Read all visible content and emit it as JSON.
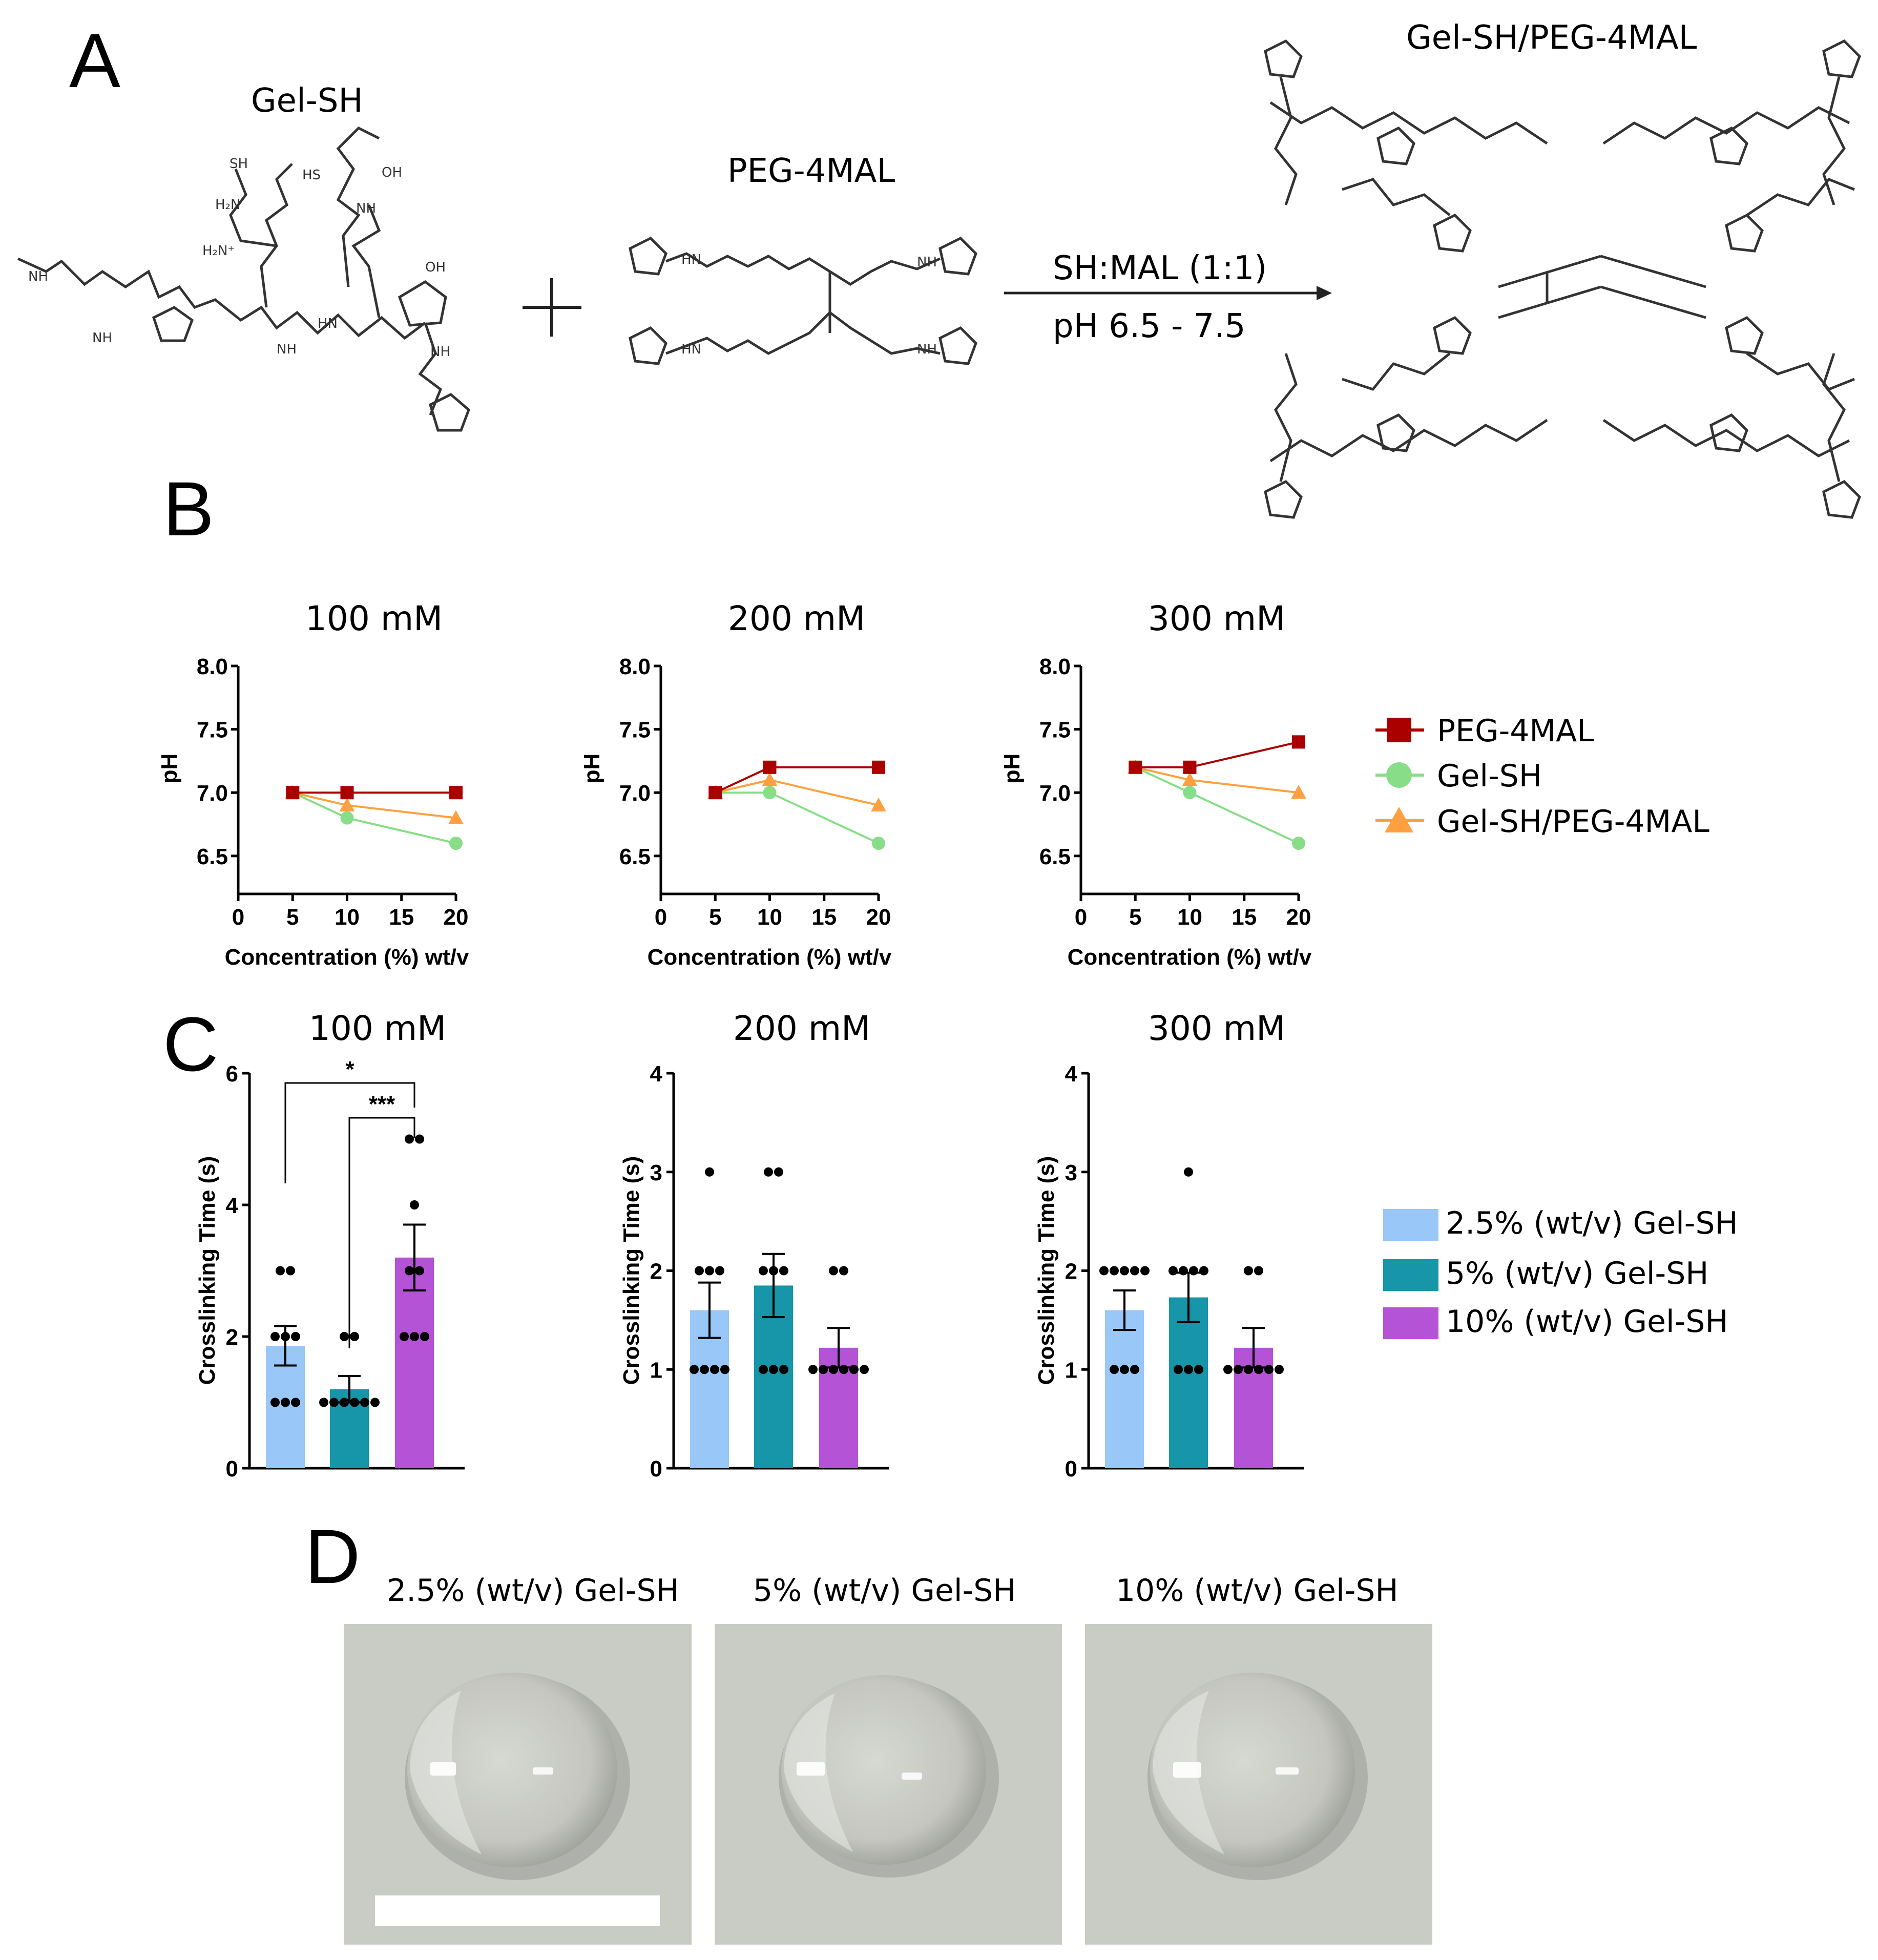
{
  "panel_a": {
    "letter": "A",
    "gel_sh_label": "Gel-SH",
    "peg_label": "PEG-4MAL",
    "product_label": "Gel-SH/PEG-4MAL",
    "condition_ratio": "SH:MAL (1:1)",
    "condition_ph": "pH 6.5 - 7.5"
  },
  "panel_b": {
    "letter": "B"
  },
  "panel_c": {
    "letter": "C"
  },
  "panel_d": {
    "letter": "D",
    "photo_labels": [
      "2.5% (wt/v) Gel-SH",
      "5% (wt/v) Gel-SH",
      "10% (wt/v) Gel-SH"
    ]
  },
  "colors": {
    "peg": "#aa0000",
    "gel": "#88dd88",
    "mix": "#ffa040",
    "bar_2_5": "#99c7f7",
    "bar_5": "#1696a8",
    "bar_10": "#b553d6",
    "photo_bg": "#c9cbc5"
  },
  "chart_data": [
    {
      "type": "line",
      "title": "100 mM",
      "xlabel": "Concentration (%) wt/v",
      "ylabel": "pH",
      "xlim": [
        0,
        20
      ],
      "ylim": [
        6.2,
        8.0
      ],
      "xticks": [
        "0",
        "5",
        "10",
        "15",
        "20"
      ],
      "yticks": [
        "6.5",
        "7.0",
        "7.5",
        "8.0"
      ],
      "x": [
        5,
        10,
        20
      ],
      "series": [
        {
          "name": "PEG-4MAL",
          "values": [
            7.0,
            7.0,
            7.0
          ]
        },
        {
          "name": "Gel-SH",
          "values": [
            7.0,
            6.8,
            6.6
          ]
        },
        {
          "name": "Gel-SH/PEG-4MAL",
          "values": [
            7.0,
            6.9,
            6.8
          ]
        }
      ]
    },
    {
      "type": "line",
      "title": "200 mM",
      "xlabel": "Concentration (%) wt/v",
      "ylabel": "pH",
      "xlim": [
        0,
        20
      ],
      "ylim": [
        6.2,
        8.0
      ],
      "xticks": [
        "0",
        "5",
        "10",
        "15",
        "20"
      ],
      "yticks": [
        "6.5",
        "7.0",
        "7.5",
        "8.0"
      ],
      "x": [
        5,
        10,
        20
      ],
      "series": [
        {
          "name": "PEG-4MAL",
          "values": [
            7.0,
            7.2,
            7.2
          ]
        },
        {
          "name": "Gel-SH",
          "values": [
            7.0,
            7.0,
            6.6
          ]
        },
        {
          "name": "Gel-SH/PEG-4MAL",
          "values": [
            7.0,
            7.1,
            6.9
          ]
        }
      ]
    },
    {
      "type": "line",
      "title": "300 mM",
      "xlabel": "Concentration (%) wt/v",
      "ylabel": "pH",
      "xlim": [
        0,
        20
      ],
      "ylim": [
        6.2,
        8.0
      ],
      "xticks": [
        "0",
        "5",
        "10",
        "15",
        "20"
      ],
      "yticks": [
        "6.5",
        "7.0",
        "7.5",
        "8.0"
      ],
      "x": [
        5,
        10,
        20
      ],
      "series": [
        {
          "name": "PEG-4MAL",
          "values": [
            7.2,
            7.2,
            7.4
          ]
        },
        {
          "name": "Gel-SH",
          "values": [
            7.2,
            7.0,
            6.6
          ]
        },
        {
          "name": "Gel-SH/PEG-4MAL",
          "values": [
            7.2,
            7.1,
            7.0
          ]
        }
      ]
    },
    {
      "type": "bar",
      "title": "100 mM",
      "ylabel": "Crosslinking Time (s)",
      "ylim": [
        0,
        6
      ],
      "yticks": [
        "0",
        "2",
        "4",
        "6"
      ],
      "categories": [
        "2.5% (wt/v) Gel-SH",
        "5% (wt/v) Gel-SH",
        "10% (wt/v) Gel-SH"
      ],
      "values": [
        1.86,
        1.2,
        3.2
      ],
      "errors": [
        0.3,
        0.2,
        0.5
      ],
      "points": [
        [
          1,
          1,
          1,
          2,
          2,
          2,
          3,
          3
        ],
        [
          1,
          1,
          1,
          1,
          1,
          1,
          2,
          2
        ],
        [
          2,
          2,
          2,
          3,
          3,
          4,
          5,
          5
        ]
      ],
      "significance": [
        {
          "pair": [
            0,
            2
          ],
          "label": "*"
        },
        {
          "pair": [
            1,
            2
          ],
          "label": "***"
        }
      ]
    },
    {
      "type": "bar",
      "title": "200 mM",
      "ylabel": "Crosslinking Time (s)",
      "ylim": [
        0,
        4
      ],
      "yticks": [
        "0",
        "1",
        "2",
        "3",
        "4"
      ],
      "categories": [
        "2.5% (wt/v) Gel-SH",
        "5% (wt/v) Gel-SH",
        "10% (wt/v) Gel-SH"
      ],
      "values": [
        1.6,
        1.85,
        1.22
      ],
      "errors": [
        0.28,
        0.32,
        0.2
      ],
      "points": [
        [
          1,
          1,
          1,
          1,
          2,
          2,
          2,
          3
        ],
        [
          1,
          1,
          1,
          2,
          2,
          2,
          3,
          3
        ],
        [
          1,
          1,
          1,
          1,
          1,
          1,
          2,
          2
        ]
      ],
      "significance": []
    },
    {
      "type": "bar",
      "title": "300 mM",
      "ylabel": "Crosslinking Time (s)",
      "ylim": [
        0,
        4
      ],
      "yticks": [
        "0",
        "1",
        "2",
        "3",
        "4"
      ],
      "categories": [
        "2.5% (wt/v) Gel-SH",
        "5% (wt/v) Gel-SH",
        "10% (wt/v) Gel-SH"
      ],
      "values": [
        1.6,
        1.73,
        1.22
      ],
      "errors": [
        0.2,
        0.25,
        0.2
      ],
      "points": [
        [
          1,
          1,
          1,
          2,
          2,
          2,
          2,
          2
        ],
        [
          1,
          1,
          1,
          2,
          2,
          2,
          2,
          3
        ],
        [
          1,
          1,
          1,
          1,
          1,
          1,
          2,
          2
        ]
      ],
      "significance": []
    }
  ],
  "legend_b": [
    {
      "label": "PEG-4MAL",
      "marker": "square"
    },
    {
      "label": "Gel-SH",
      "marker": "circle"
    },
    {
      "label": "Gel-SH/PEG-4MAL",
      "marker": "triangle"
    }
  ],
  "legend_c": [
    "2.5% (wt/v) Gel-SH",
    "5% (wt/v) Gel-SH",
    "10% (wt/v) Gel-SH"
  ]
}
